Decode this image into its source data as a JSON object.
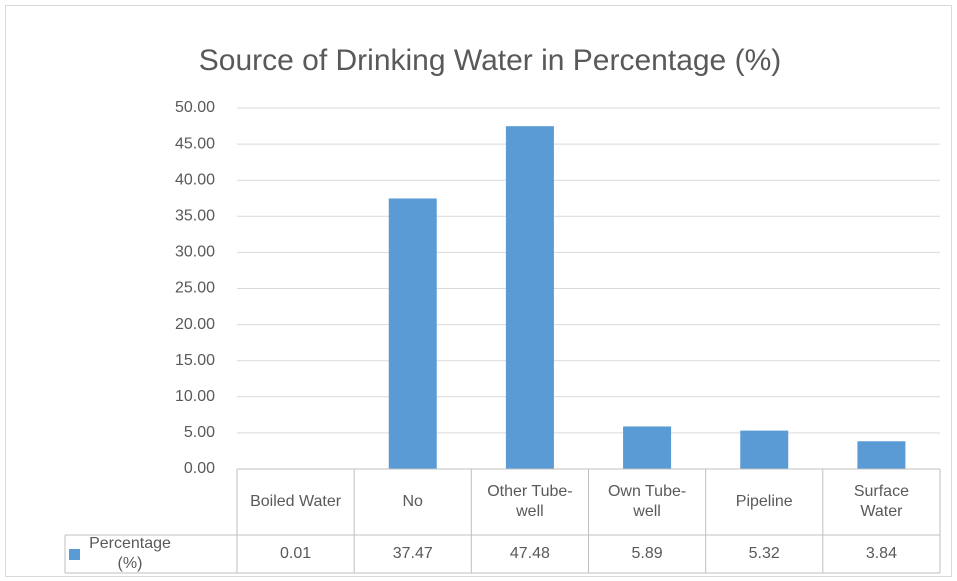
{
  "chart_data": {
    "type": "bar",
    "title": "Source of Drinking Water in Percentage (%)",
    "categories": [
      "Boiled Water",
      "No",
      "Other Tube-well",
      "Own Tube-well",
      "Pipeline",
      "Surface Water"
    ],
    "series": [
      {
        "name": "Percentage (%)",
        "color": "#5b9bd5",
        "values": [
          0.01,
          37.47,
          47.48,
          5.89,
          5.32,
          3.84
        ]
      }
    ],
    "ylim": [
      0,
      50
    ],
    "yticks": [
      {
        "value": 0,
        "label": "0.00"
      },
      {
        "value": 5,
        "label": "5.00"
      },
      {
        "value": 10,
        "label": "10.00"
      },
      {
        "value": 15,
        "label": "15.00"
      },
      {
        "value": 20,
        "label": "20.00"
      },
      {
        "value": 25,
        "label": "25.00"
      },
      {
        "value": 30,
        "label": "30.00"
      },
      {
        "value": 35,
        "label": "35.00"
      },
      {
        "value": 40,
        "label": "40.00"
      },
      {
        "value": 45,
        "label": "45.00"
      },
      {
        "value": 50,
        "label": "50.00"
      }
    ],
    "grid": true,
    "data_table": true
  }
}
